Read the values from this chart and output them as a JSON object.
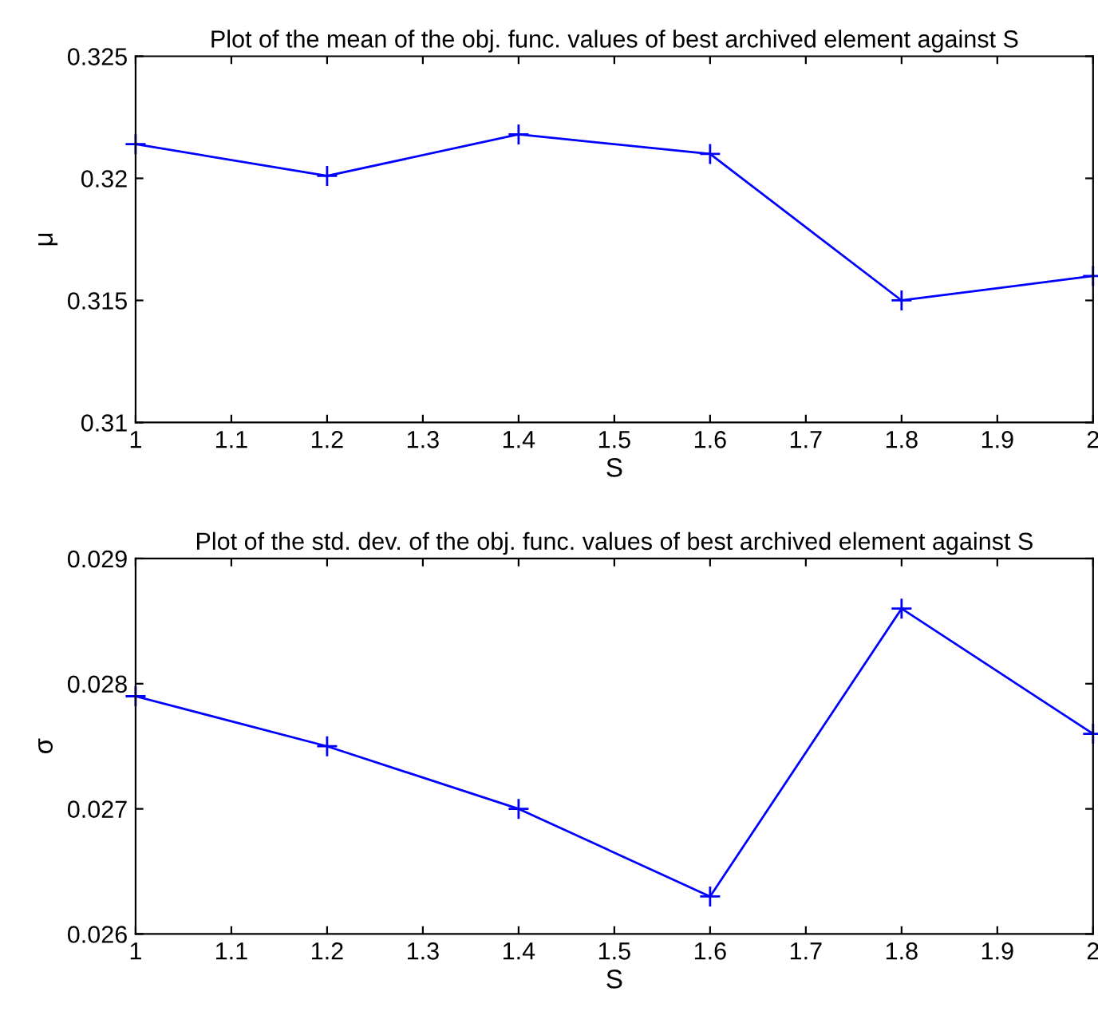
{
  "chart_data": [
    {
      "type": "line",
      "title": "Plot of the mean of the obj. func. values of best archived element against S",
      "xlabel": "S",
      "ylabel": "μ",
      "x": [
        1,
        1.2,
        1.4,
        1.6,
        1.8,
        2
      ],
      "series": [
        {
          "color": "#0000ff",
          "values": [
            0.3214,
            0.3201,
            0.3218,
            0.321,
            0.315,
            0.316
          ]
        }
      ],
      "xlim": [
        1,
        2
      ],
      "xticks": [
        1,
        1.1,
        1.2,
        1.3,
        1.4,
        1.5,
        1.6,
        1.7,
        1.8,
        1.9,
        2
      ],
      "ylim": [
        0.31,
        0.325
      ],
      "yticks": [
        0.31,
        0.315,
        0.32,
        0.325
      ],
      "marker": "cross",
      "line_style": "solid",
      "grid": false,
      "legend": false
    },
    {
      "type": "line",
      "title": "Plot of the std. dev. of the obj. func. values of best archived element against S",
      "xlabel": "S",
      "ylabel": "σ",
      "x": [
        1,
        1.2,
        1.4,
        1.6,
        1.8,
        2
      ],
      "series": [
        {
          "color": "#0000ff",
          "values": [
            0.0279,
            0.0275,
            0.027,
            0.0263,
            0.0286,
            0.0276
          ]
        }
      ],
      "xlim": [
        1,
        2
      ],
      "xticks": [
        1,
        1.1,
        1.2,
        1.3,
        1.4,
        1.5,
        1.6,
        1.7,
        1.8,
        1.9,
        2
      ],
      "ylim": [
        0.026,
        0.029
      ],
      "yticks": [
        0.026,
        0.027,
        0.028,
        0.029
      ],
      "marker": "cross",
      "line_style": "solid",
      "grid": false,
      "legend": false
    }
  ]
}
